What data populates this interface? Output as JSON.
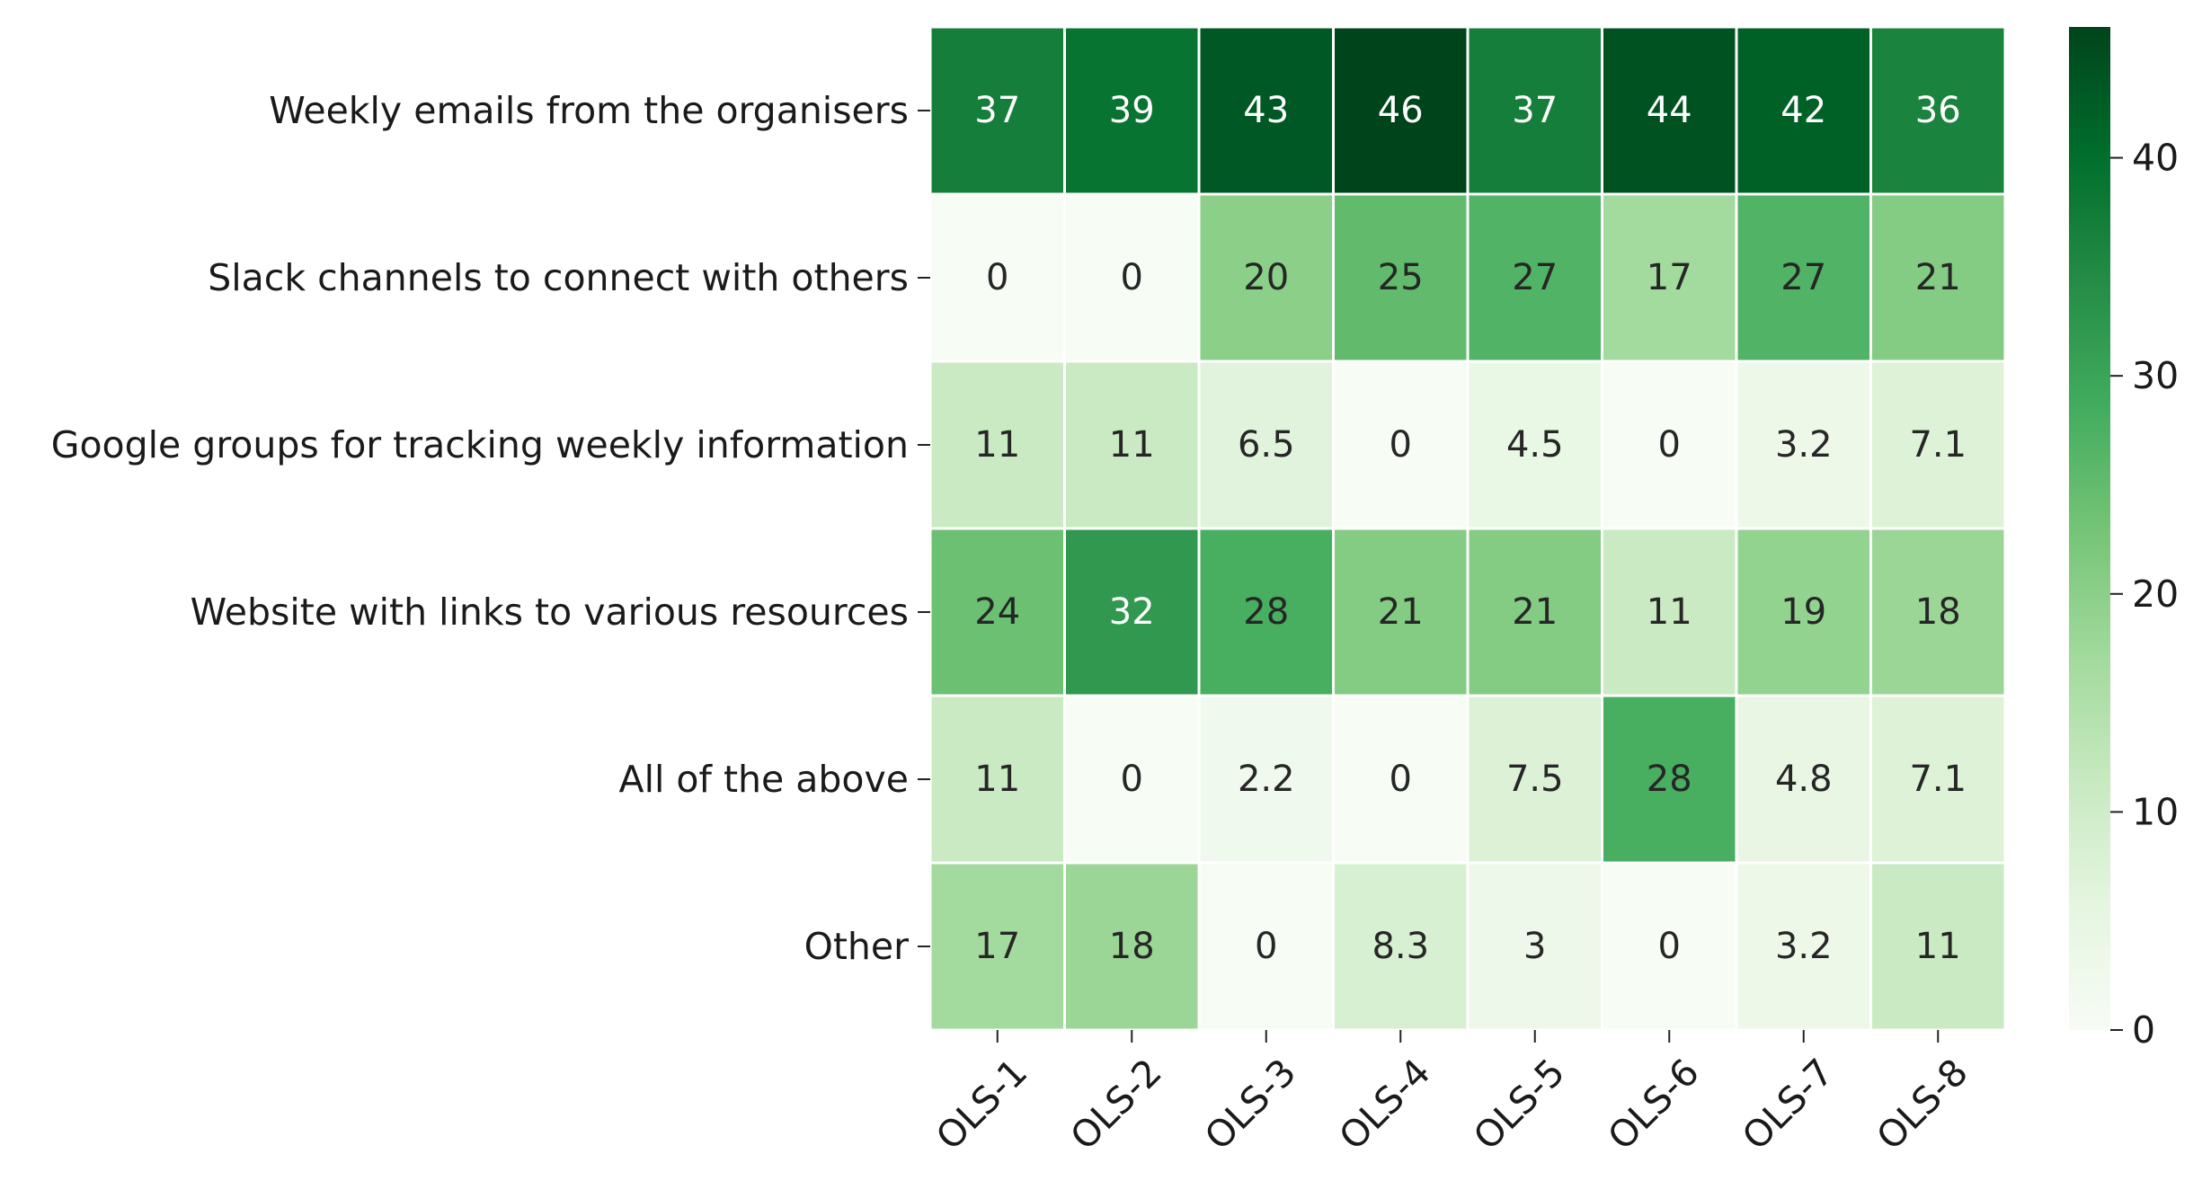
{
  "chart_data": {
    "type": "heatmap",
    "title": "",
    "xlabel": "",
    "ylabel": "",
    "x_categories": [
      "OLS-1",
      "OLS-2",
      "OLS-3",
      "OLS-4",
      "OLS-5",
      "OLS-6",
      "OLS-7",
      "OLS-8"
    ],
    "y_categories": [
      "Weekly emails from the organisers",
      "Slack channels to connect with others",
      "Google groups for tracking weekly information",
      "Website with links to various resources",
      "All of the above",
      "Other"
    ],
    "values": [
      [
        37,
        39,
        43,
        46,
        37,
        44,
        42,
        36
      ],
      [
        0,
        0,
        20,
        25,
        27,
        17,
        27,
        21
      ],
      [
        11,
        11,
        6.5,
        0,
        4.5,
        0,
        3.2,
        7.1
      ],
      [
        24,
        32,
        28,
        21,
        21,
        11,
        19,
        18
      ],
      [
        11,
        0,
        2.2,
        0,
        7.5,
        28,
        4.8,
        7.1
      ],
      [
        17,
        18,
        0,
        8.3,
        3,
        0,
        3.2,
        11
      ]
    ],
    "colorscale": "Greens",
    "color_range": [
      0,
      46
    ],
    "colorbar_ticks": [
      0,
      10,
      20,
      30,
      40
    ],
    "colors": {
      "low": "#f7fcf5",
      "high": "#00441b"
    },
    "x_tick_rotation_deg": 45
  }
}
